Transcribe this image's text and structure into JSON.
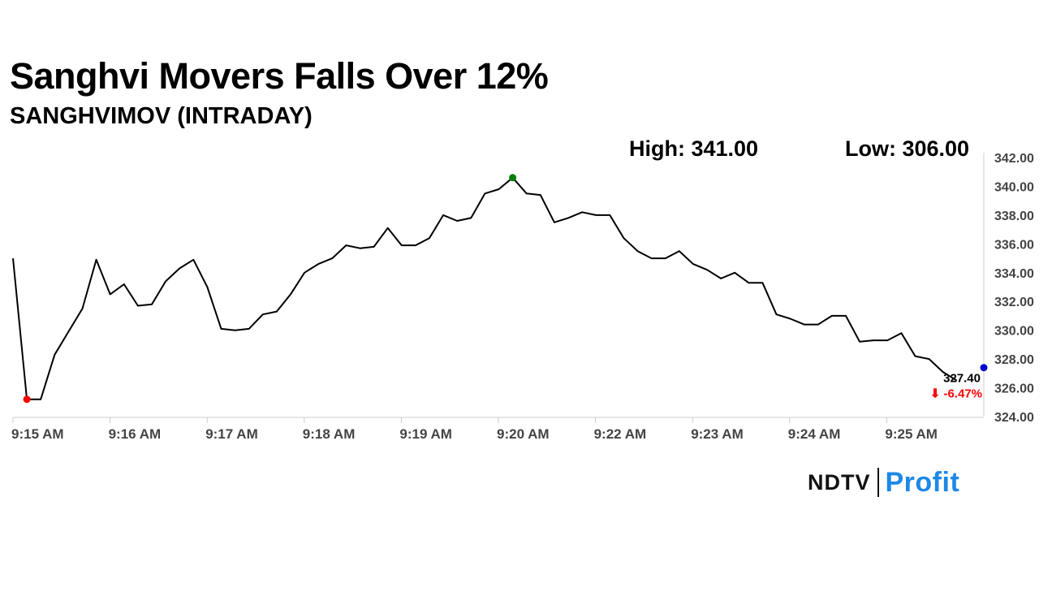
{
  "title": "Sanghvi Movers Falls Over 12%",
  "subtitle": "SANGHVIMOV (INTRADAY)",
  "high_label": "High: 341.00",
  "low_label": "Low: 306.00",
  "brand": {
    "ndtv": "NDTV",
    "profit": "Profit"
  },
  "chart_data": {
    "type": "line",
    "ylim": [
      324,
      342
    ],
    "yticks": [
      "342.00",
      "340.00",
      "338.00",
      "336.00",
      "334.00",
      "332.00",
      "330.00",
      "328.00",
      "326.00",
      "324.00"
    ],
    "xticks": [
      "9:15 AM",
      "9:16 AM",
      "9:17 AM",
      "9:18 AM",
      "9:19 AM",
      "9:20 AM",
      "9:22 AM",
      "9:23 AM",
      "9:24 AM",
      "9:25 AM"
    ],
    "series": [
      {
        "values": [
          335.0,
          325.2,
          325.2,
          328.3,
          329.9,
          331.5,
          334.9,
          332.5,
          333.2,
          331.7,
          331.8,
          333.4,
          334.3,
          334.9,
          333.0,
          330.1,
          330.0,
          330.1,
          331.1,
          331.3,
          332.5,
          334.0,
          334.6,
          335.0,
          335.9,
          335.7,
          335.8,
          337.1,
          335.9,
          335.9,
          336.4,
          338.0,
          337.6,
          337.8,
          339.5,
          339.8,
          340.6,
          339.5,
          339.4,
          337.5,
          337.8,
          338.2,
          338.0,
          338.0,
          336.4,
          335.5,
          335.0,
          335.0,
          335.5,
          334.6,
          334.2,
          333.6,
          334.0,
          333.3,
          333.3,
          331.1,
          330.8,
          330.4,
          330.4,
          331.0,
          331.0,
          329.2,
          329.3,
          329.3,
          329.8,
          328.2,
          328.0,
          327.1,
          326.5
        ]
      }
    ],
    "high_point": {
      "index": 36,
      "value": 340.6
    },
    "low_point": {
      "index": 1,
      "value": 325.2
    },
    "last_value": 327.4,
    "last_label": "327.40",
    "change_label": "⬇ -6.47%",
    "line_color": "#000000",
    "high_color": "#008000",
    "low_color": "#ff0000",
    "last_color": "#0000cc",
    "change_color": "#ff0000",
    "grid": false
  }
}
